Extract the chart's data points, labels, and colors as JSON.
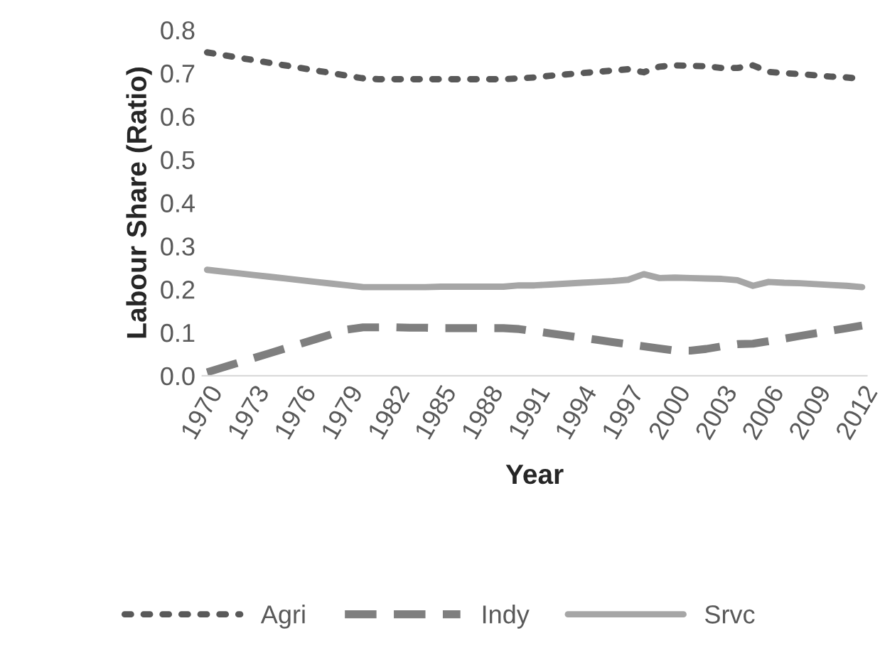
{
  "chart_data": {
    "type": "line",
    "xlabel": "Year",
    "ylabel": "Labour Share (Ratio)",
    "categories": [
      "1970",
      null,
      null,
      "1973",
      null,
      null,
      "1976",
      null,
      null,
      "1979",
      null,
      null,
      "1982",
      null,
      null,
      "1985",
      null,
      null,
      "1988",
      null,
      null,
      "1991",
      null,
      null,
      "1994",
      null,
      null,
      "1997",
      null,
      null,
      "2000",
      null,
      null,
      "2003",
      null,
      null,
      "2006",
      null,
      null,
      "2009",
      null,
      null,
      "2012"
    ],
    "ylim": [
      0,
      0.8
    ],
    "yticks": [
      {
        "value": 0,
        "label": "0.0"
      },
      {
        "value": 0.1,
        "label": "0.1"
      },
      {
        "value": 0.2,
        "label": "0.2"
      },
      {
        "value": 0.3,
        "label": "0.3"
      },
      {
        "value": 0.4,
        "label": "0.4"
      },
      {
        "value": 0.5,
        "label": "0.5"
      },
      {
        "value": 0.6,
        "label": "0.6"
      },
      {
        "value": 0.7,
        "label": "0.7"
      },
      {
        "value": 0.8,
        "label": "0.8"
      }
    ],
    "grid": false,
    "legend": "bottom",
    "series": [
      {
        "name": "Agri",
        "color": "#595959",
        "line_style": "dotted",
        "values": [
          0.748,
          0.742,
          0.736,
          0.73,
          0.724,
          0.718,
          0.712,
          0.706,
          0.7,
          0.694,
          0.688,
          0.686,
          0.686,
          0.686,
          0.686,
          0.686,
          0.686,
          0.686,
          0.686,
          0.686,
          0.688,
          0.69,
          0.694,
          0.697,
          0.7,
          0.703,
          0.706,
          0.709,
          0.702,
          0.715,
          0.718,
          0.717,
          0.716,
          0.712,
          0.712,
          0.718,
          0.703,
          0.7,
          0.698,
          0.695,
          0.692,
          0.69,
          0.687
        ]
      },
      {
        "name": "Indy",
        "color": "#7f7f7f",
        "line_style": "dashed",
        "values": [
          0.008,
          0.019,
          0.03,
          0.041,
          0.052,
          0.063,
          0.074,
          0.085,
          0.096,
          0.107,
          0.112,
          0.112,
          0.112,
          0.111,
          0.111,
          0.11,
          0.11,
          0.11,
          0.11,
          0.11,
          0.108,
          0.103,
          0.098,
          0.093,
          0.088,
          0.083,
          0.078,
          0.073,
          0.068,
          0.063,
          0.058,
          0.058,
          0.062,
          0.068,
          0.073,
          0.074,
          0.08,
          0.086,
          0.092,
          0.098,
          0.104,
          0.11,
          0.116
        ]
      },
      {
        "name": "Srvc",
        "color": "#a6a6a6",
        "line_style": "solid",
        "values": [
          0.245,
          0.241,
          0.237,
          0.233,
          0.229,
          0.225,
          0.221,
          0.217,
          0.213,
          0.209,
          0.205,
          0.205,
          0.205,
          0.205,
          0.205,
          0.206,
          0.206,
          0.206,
          0.206,
          0.206,
          0.209,
          0.209,
          0.211,
          0.213,
          0.215,
          0.217,
          0.219,
          0.222,
          0.235,
          0.226,
          0.227,
          0.226,
          0.225,
          0.224,
          0.221,
          0.208,
          0.217,
          0.215,
          0.214,
          0.212,
          0.21,
          0.208,
          0.205
        ]
      }
    ]
  }
}
